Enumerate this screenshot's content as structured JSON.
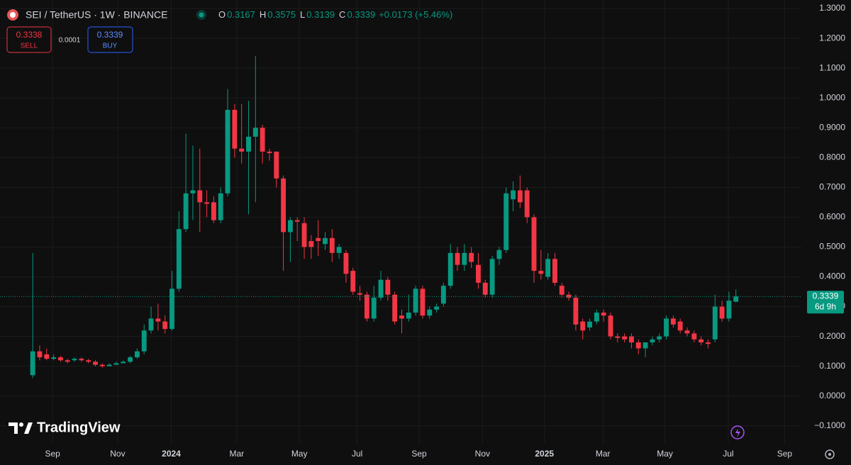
{
  "chart_data": {
    "type": "candlestick",
    "title": "SEI / TetherUS · 1W · BINANCE",
    "ohlc_legend": [
      {
        "key": "O",
        "value": "0.3167"
      },
      {
        "key": "H",
        "value": "0.3575"
      },
      {
        "key": "L",
        "value": "0.3139"
      },
      {
        "key": "C",
        "value": "0.3339"
      }
    ],
    "change": "+0.0173 (+5.46%)",
    "sell": {
      "price": "0.3338",
      "label": "SELL"
    },
    "spread": "0.0001",
    "buy": {
      "price": "0.3339",
      "label": "BUY"
    },
    "last_price": {
      "value": 0.3339,
      "label": "0.3339",
      "countdown": "6d 9h"
    },
    "brand": "TradingView",
    "up_color": "#089981",
    "down_color": "#f23645",
    "grid": true,
    "open": [
      0.07,
      0.15,
      0.14,
      0.125,
      0.13,
      0.12,
      0.12,
      0.125,
      0.12,
      0.115,
      0.105,
      0.1,
      0.105,
      0.11,
      0.115,
      0.13,
      0.15,
      0.22,
      0.26,
      0.25,
      0.225,
      0.36,
      0.56,
      0.68,
      0.69,
      0.65,
      0.65,
      0.59,
      0.68,
      0.96,
      0.83,
      0.82,
      0.87,
      0.9,
      0.82,
      0.82,
      0.73,
      0.55,
      0.59,
      0.58,
      0.52,
      0.53,
      0.51,
      0.53,
      0.48,
      0.48,
      0.42,
      0.345,
      0.34,
      0.26,
      0.33,
      0.39,
      0.34,
      0.27,
      0.26,
      0.28,
      0.36,
      0.27,
      0.29,
      0.31,
      0.37,
      0.48,
      0.44,
      0.48,
      0.44,
      0.38,
      0.34,
      0.46,
      0.49,
      0.66,
      0.69,
      0.69,
      0.6,
      0.42,
      0.4,
      0.46,
      0.37,
      0.34,
      0.33,
      0.25,
      0.23,
      0.25,
      0.28,
      0.27,
      0.2,
      0.2,
      0.2,
      0.18,
      0.16,
      0.18,
      0.19,
      0.2,
      0.26,
      0.25,
      0.22,
      0.21,
      0.19,
      0.18,
      0.19,
      0.3,
      0.26,
      0.3167
    ],
    "high": [
      0.48,
      0.17,
      0.16,
      0.14,
      0.135,
      0.125,
      0.13,
      0.13,
      0.125,
      0.12,
      0.11,
      0.11,
      0.115,
      0.12,
      0.135,
      0.16,
      0.24,
      0.3,
      0.31,
      0.27,
      0.42,
      0.62,
      0.88,
      0.84,
      0.83,
      0.69,
      0.67,
      0.7,
      1.03,
      0.98,
      0.98,
      0.99,
      1.14,
      0.91,
      0.83,
      0.82,
      0.74,
      0.6,
      0.6,
      0.6,
      0.54,
      0.59,
      0.55,
      0.56,
      0.51,
      0.49,
      0.43,
      0.37,
      0.35,
      0.37,
      0.42,
      0.4,
      0.35,
      0.29,
      0.34,
      0.37,
      0.37,
      0.3,
      0.31,
      0.38,
      0.51,
      0.5,
      0.51,
      0.5,
      0.48,
      0.39,
      0.47,
      0.5,
      0.7,
      0.72,
      0.74,
      0.7,
      0.61,
      0.49,
      0.48,
      0.48,
      0.38,
      0.35,
      0.34,
      0.26,
      0.26,
      0.29,
      0.29,
      0.28,
      0.21,
      0.21,
      0.21,
      0.19,
      0.18,
      0.2,
      0.21,
      0.27,
      0.27,
      0.26,
      0.23,
      0.22,
      0.2,
      0.19,
      0.34,
      0.32,
      0.35,
      0.3575
    ],
    "low": [
      0.06,
      0.12,
      0.12,
      0.12,
      0.115,
      0.11,
      0.115,
      0.115,
      0.11,
      0.1,
      0.095,
      0.1,
      0.105,
      0.11,
      0.11,
      0.125,
      0.14,
      0.21,
      0.22,
      0.21,
      0.22,
      0.35,
      0.55,
      0.59,
      0.55,
      0.6,
      0.58,
      0.58,
      0.67,
      0.8,
      0.78,
      0.61,
      0.65,
      0.78,
      0.79,
      0.7,
      0.42,
      0.45,
      0.52,
      0.46,
      0.46,
      0.47,
      0.49,
      0.45,
      0.46,
      0.38,
      0.34,
      0.32,
      0.25,
      0.25,
      0.32,
      0.32,
      0.24,
      0.21,
      0.25,
      0.27,
      0.26,
      0.26,
      0.28,
      0.3,
      0.36,
      0.42,
      0.42,
      0.43,
      0.36,
      0.33,
      0.33,
      0.44,
      0.48,
      0.62,
      0.63,
      0.58,
      0.38,
      0.39,
      0.39,
      0.37,
      0.33,
      0.32,
      0.22,
      0.19,
      0.22,
      0.24,
      0.25,
      0.19,
      0.18,
      0.18,
      0.16,
      0.14,
      0.13,
      0.17,
      0.18,
      0.19,
      0.23,
      0.21,
      0.2,
      0.18,
      0.17,
      0.16,
      0.18,
      0.25,
      0.25,
      0.3139
    ],
    "close": [
      0.15,
      0.13,
      0.125,
      0.13,
      0.12,
      0.115,
      0.125,
      0.12,
      0.115,
      0.105,
      0.1,
      0.105,
      0.11,
      0.115,
      0.13,
      0.15,
      0.22,
      0.26,
      0.25,
      0.225,
      0.36,
      0.56,
      0.68,
      0.69,
      0.65,
      0.645,
      0.59,
      0.68,
      0.96,
      0.83,
      0.82,
      0.87,
      0.9,
      0.82,
      0.815,
      0.73,
      0.55,
      0.59,
      0.585,
      0.5,
      0.5,
      0.52,
      0.53,
      0.48,
      0.5,
      0.41,
      0.35,
      0.34,
      0.26,
      0.33,
      0.39,
      0.34,
      0.25,
      0.26,
      0.28,
      0.36,
      0.27,
      0.29,
      0.3,
      0.37,
      0.48,
      0.44,
      0.48,
      0.45,
      0.38,
      0.34,
      0.46,
      0.49,
      0.68,
      0.69,
      0.65,
      0.6,
      0.42,
      0.41,
      0.46,
      0.38,
      0.34,
      0.33,
      0.24,
      0.22,
      0.25,
      0.28,
      0.27,
      0.2,
      0.195,
      0.19,
      0.18,
      0.16,
      0.18,
      0.19,
      0.2,
      0.26,
      0.24,
      0.22,
      0.21,
      0.19,
      0.18,
      0.175,
      0.3,
      0.26,
      0.32,
      0.3339
    ],
    "xlim": [
      -4.7,
      110.4
    ],
    "xticks": [
      {
        "value": 2.85,
        "label": "Sep"
      },
      {
        "value": 12.2,
        "label": "Nov"
      },
      {
        "value": 19.9,
        "label": "2024"
      },
      {
        "value": 29.3,
        "label": "Mar"
      },
      {
        "value": 38.3,
        "label": "May"
      },
      {
        "value": 46.6,
        "label": "Jul"
      },
      {
        "value": 55.5,
        "label": "Sep"
      },
      {
        "value": 64.6,
        "label": "Nov"
      },
      {
        "value": 73.5,
        "label": "2025"
      },
      {
        "value": 81.9,
        "label": "Mar"
      },
      {
        "value": 90.8,
        "label": "May"
      },
      {
        "value": 99.9,
        "label": "Jul"
      },
      {
        "value": 108.0,
        "label": "Sep"
      }
    ],
    "ylim": [
      -0.16,
      1.3286
    ],
    "yticks": [
      {
        "value": 1.3,
        "label": "1.3000"
      },
      {
        "value": 1.2,
        "label": "1.2000"
      },
      {
        "value": 1.1,
        "label": "1.1000"
      },
      {
        "value": 1.0,
        "label": "1.0000"
      },
      {
        "value": 0.9,
        "label": "0.9000"
      },
      {
        "value": 0.8,
        "label": "0.8000"
      },
      {
        "value": 0.7,
        "label": "0.7000"
      },
      {
        "value": 0.6,
        "label": "0.6000"
      },
      {
        "value": 0.5,
        "label": "0.5000"
      },
      {
        "value": 0.4,
        "label": "0.4000"
      },
      {
        "value": 0.3,
        "label": "0.3000"
      },
      {
        "value": 0.2,
        "label": "0.2000"
      },
      {
        "value": 0.1,
        "label": "0.1000"
      },
      {
        "value": 0,
        "label": "0.0000"
      },
      {
        "value": -0.1,
        "label": "−0.1000"
      }
    ]
  }
}
